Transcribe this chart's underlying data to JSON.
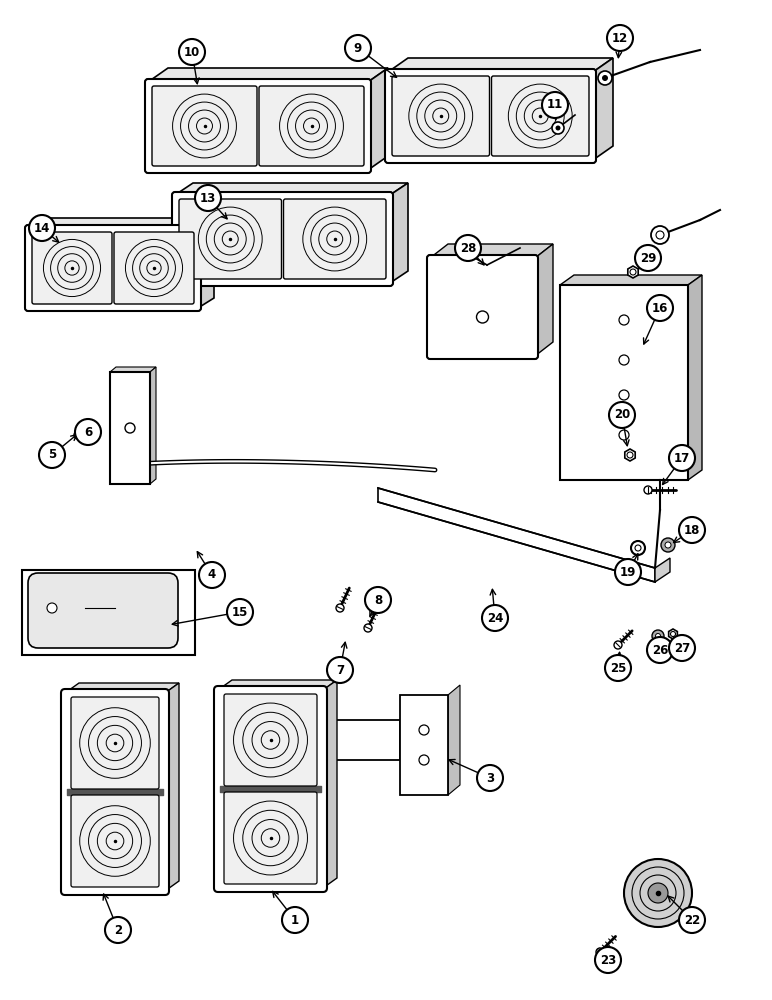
{
  "bg_color": "#ffffff",
  "line_color": "#000000",
  "figsize": [
    7.72,
    10.0
  ],
  "dpi": 100
}
